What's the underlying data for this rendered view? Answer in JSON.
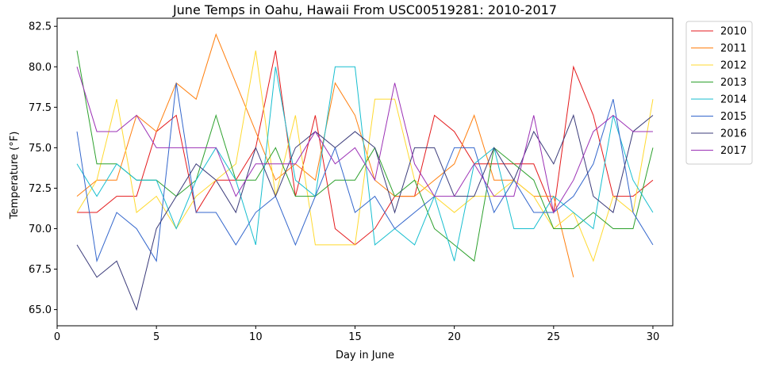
{
  "chart_data": {
    "type": "line",
    "title": "June Temps in Oahu, Hawaii From USC00519281: 2010-2017",
    "xlabel": "Day in June",
    "ylabel": "Temperature (°F)",
    "xlim": [
      0,
      31
    ],
    "ylim": [
      64,
      83
    ],
    "xticks": [
      0,
      5,
      10,
      15,
      20,
      25,
      30
    ],
    "yticks": [
      65.0,
      67.5,
      70.0,
      72.5,
      75.0,
      77.5,
      80.0,
      82.5
    ],
    "grid": false,
    "legend_position": "outside-top-right",
    "series": [
      {
        "name": "2010",
        "color": "#e41a1c",
        "x": [
          1,
          2,
          3,
          4,
          5,
          6,
          7,
          8,
          9,
          10,
          11,
          12,
          13,
          14,
          15,
          16,
          17,
          18,
          19,
          20,
          21,
          22,
          23,
          24,
          25,
          26,
          27,
          28,
          29,
          30
        ],
        "values": [
          71,
          71,
          72,
          72,
          76,
          77,
          71,
          73,
          73,
          75,
          81,
          72,
          77,
          70,
          69,
          70,
          72,
          72,
          77,
          76,
          74,
          74,
          74,
          74,
          71,
          80,
          77,
          72,
          72,
          73
        ]
      },
      {
        "name": "2011",
        "color": "#ff7f0e",
        "x": [
          1,
          2,
          3,
          4,
          5,
          6,
          7,
          8,
          9,
          10,
          11,
          12,
          13,
          14,
          15,
          16,
          17,
          18,
          19,
          20,
          21,
          22,
          23,
          24,
          25,
          26
        ],
        "values": [
          72,
          73,
          73,
          77,
          76,
          79,
          78,
          82,
          79,
          76,
          73,
          74,
          73,
          79,
          77,
          73,
          72,
          72,
          73,
          74,
          77,
          73,
          73,
          72,
          72,
          67
        ]
      },
      {
        "name": "2012",
        "color": "#ffd92f",
        "x": [
          1,
          2,
          3,
          4,
          5,
          6,
          7,
          8,
          9,
          10,
          11,
          12,
          13,
          14,
          15,
          16,
          17,
          18,
          19,
          20,
          21,
          22,
          23,
          24,
          25,
          26,
          27,
          28,
          29,
          30
        ],
        "values": [
          71,
          73,
          78,
          71,
          72,
          70,
          72,
          73,
          74,
          81,
          72,
          77,
          69,
          69,
          69,
          78,
          78,
          73,
          72,
          71,
          72,
          72,
          73,
          72,
          70,
          71,
          68,
          72,
          71,
          78
        ]
      },
      {
        "name": "2013",
        "color": "#2ca02c",
        "x": [
          1,
          2,
          3,
          4,
          5,
          6,
          7,
          8,
          9,
          10,
          11,
          12,
          13,
          14,
          15,
          16,
          17,
          18,
          19,
          20,
          21,
          22,
          23,
          24,
          25,
          26,
          27,
          28,
          29,
          30
        ],
        "values": [
          81,
          74,
          74,
          73,
          73,
          72,
          73,
          77,
          73,
          73,
          75,
          72,
          72,
          73,
          73,
          75,
          72,
          73,
          70,
          69,
          68,
          75,
          74,
          73,
          70,
          70,
          71,
          70,
          70,
          75
        ]
      },
      {
        "name": "2014",
        "color": "#17becf",
        "x": [
          1,
          2,
          3,
          4,
          5,
          6,
          7,
          8,
          9,
          10,
          11,
          12,
          13,
          14,
          15,
          16,
          17,
          18,
          19,
          20,
          21,
          22,
          23,
          24,
          25,
          26,
          27,
          28,
          29,
          30
        ],
        "values": [
          74,
          72,
          74,
          73,
          73,
          70,
          73,
          75,
          73,
          69,
          80,
          73,
          72,
          80,
          80,
          69,
          70,
          69,
          72,
          68,
          74,
          75,
          70,
          70,
          72,
          71,
          70,
          77,
          73,
          71
        ]
      },
      {
        "name": "2015",
        "color": "#3366cc",
        "x": [
          1,
          2,
          3,
          4,
          5,
          6,
          7,
          8,
          9,
          10,
          11,
          12,
          13,
          14,
          15,
          16,
          17,
          18,
          19,
          20,
          21,
          22,
          23,
          24,
          25,
          26,
          27,
          28,
          29,
          30
        ],
        "values": [
          76,
          68,
          71,
          70,
          68,
          79,
          71,
          71,
          69,
          71,
          72,
          69,
          72,
          75,
          71,
          72,
          70,
          71,
          72,
          75,
          75,
          71,
          73,
          71,
          71,
          72,
          74,
          78,
          71,
          69
        ]
      },
      {
        "name": "2016",
        "color": "#3b3b7a",
        "x": [
          1,
          2,
          3,
          4,
          5,
          6,
          7,
          8,
          9,
          10,
          11,
          12,
          13,
          14,
          15,
          16,
          17,
          18,
          19,
          20,
          21,
          22,
          23,
          24,
          25,
          26,
          27,
          28,
          29,
          30
        ],
        "values": [
          69,
          67,
          68,
          65,
          70,
          72,
          74,
          73,
          71,
          75,
          72,
          75,
          76,
          75,
          76,
          75,
          71,
          75,
          75,
          72,
          72,
          75,
          73,
          76,
          74,
          77,
          72,
          71,
          76,
          77
        ]
      },
      {
        "name": "2017",
        "color": "#9b30b5",
        "x": [
          1,
          2,
          3,
          4,
          5,
          6,
          7,
          8,
          9,
          10,
          11,
          12,
          13,
          14,
          15,
          16,
          17,
          18,
          19,
          20,
          21,
          22,
          23,
          24,
          25,
          26,
          27,
          28,
          29,
          30
        ],
        "values": [
          80,
          76,
          76,
          77,
          75,
          75,
          75,
          75,
          72,
          74,
          74,
          74,
          76,
          74,
          75,
          73,
          79,
          74,
          72,
          72,
          74,
          72,
          72,
          77,
          71,
          73,
          76,
          77,
          76,
          76
        ]
      }
    ]
  }
}
